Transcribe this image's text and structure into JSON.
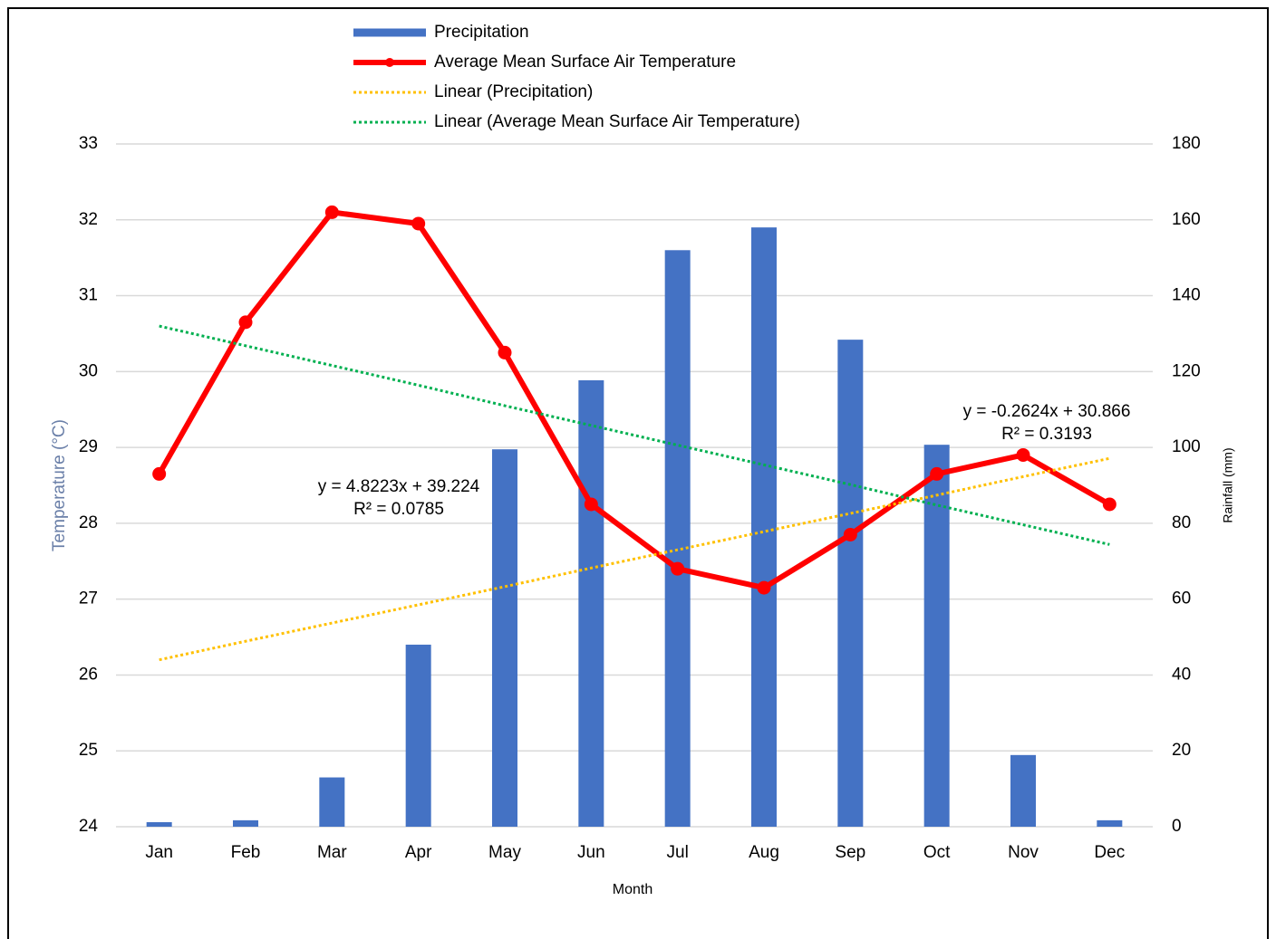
{
  "chart_data": {
    "type": "combo",
    "x_label": "Month",
    "y_label": "Temperature (°C)",
    "y2_label": "Rainfall (mm)",
    "categories": [
      "Jan",
      "Feb",
      "Mar",
      "Apr",
      "May",
      "Jun",
      "Jul",
      "Aug",
      "Sep",
      "Oct",
      "Nov",
      "Dec"
    ],
    "ylim": [
      24,
      33
    ],
    "yticks": [
      24,
      25,
      26,
      27,
      28,
      29,
      30,
      31,
      32,
      33
    ],
    "y2lim": [
      0,
      180
    ],
    "y2ticks": [
      0,
      20,
      40,
      60,
      80,
      100,
      120,
      140,
      160,
      180
    ],
    "grid": true,
    "legend": "top",
    "series": [
      {
        "name": "Precipitation",
        "type": "bar",
        "axis": "y2",
        "color": "#4472c4",
        "values": [
          1.2,
          1.7,
          13,
          48,
          99.5,
          117.7,
          152,
          158,
          128.4,
          100.7,
          18.9,
          1.7
        ]
      },
      {
        "name": "Average Mean Surface Air Temperature",
        "type": "line",
        "axis": "y",
        "color": "#ff0000",
        "marker": true,
        "values": [
          28.65,
          30.65,
          32.1,
          31.95,
          30.25,
          28.25,
          27.4,
          27.15,
          27.85,
          28.65,
          28.9,
          28.25
        ]
      },
      {
        "name": "Linear (Precipitation)",
        "type": "line",
        "axis": "y2",
        "color": "#ffc000",
        "dash": "dotted",
        "values": [
          44.0,
          48.9,
          53.7,
          58.5,
          63.3,
          68.2,
          73.0,
          77.8,
          82.6,
          87.4,
          92.3,
          97.1
        ]
      },
      {
        "name": "Linear (Average Mean Surface Air Temperature)",
        "type": "line",
        "axis": "y",
        "color": "#00b050",
        "dash": "dotted",
        "values": [
          30.6,
          30.34,
          30.08,
          29.82,
          29.55,
          29.29,
          29.03,
          28.77,
          28.51,
          28.24,
          27.98,
          27.72
        ]
      }
    ],
    "annotations": [
      "y = 4.8223x + 39.224",
      "R² = 0.0785",
      "y = -0.2624x + 30.866",
      "R² = 0.3193"
    ]
  }
}
